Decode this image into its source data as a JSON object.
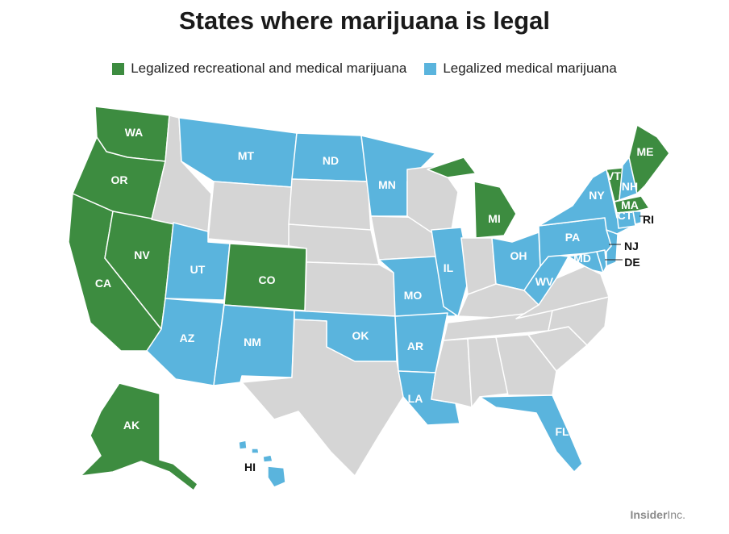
{
  "title": "States where marijuana is legal",
  "legend": [
    {
      "key": "rec",
      "label": "Legalized recreational and medical marijuana",
      "color": "#3d8c40"
    },
    {
      "key": "med",
      "label": "Legalized medical marijuana",
      "color": "#5ab4dd"
    }
  ],
  "colors": {
    "rec": "#3d8c40",
    "med": "#5ab4dd",
    "none": "#d5d5d5"
  },
  "states": {
    "WA": "rec",
    "OR": "rec",
    "CA": "rec",
    "NV": "rec",
    "CO": "rec",
    "AK": "rec",
    "MI": "rec",
    "VT": "rec",
    "MA": "rec",
    "ME": "rec",
    "MT": "med",
    "ND": "med",
    "MN": "med",
    "UT": "med",
    "AZ": "med",
    "NM": "med",
    "OK": "med",
    "AR": "med",
    "LA": "med",
    "MO": "med",
    "IL": "med",
    "OH": "med",
    "WV": "med",
    "PA": "med",
    "NY": "med",
    "NH": "med",
    "CT": "med",
    "RI": "med",
    "NJ": "med",
    "DE": "med",
    "MD": "med",
    "FL": "med",
    "HI": "med",
    "ID": "none",
    "WY": "none",
    "SD": "none",
    "NE": "none",
    "KS": "none",
    "TX": "none",
    "IA": "none",
    "WI": "none",
    "IN": "none",
    "KY": "none",
    "TN": "none",
    "MS": "none",
    "AL": "none",
    "GA": "none",
    "SC": "none",
    "NC": "none",
    "VA": "none"
  },
  "labels": [
    "WA",
    "OR",
    "CA",
    "NV",
    "MT",
    "ND",
    "MN",
    "UT",
    "CO",
    "AZ",
    "NM",
    "OK",
    "AR",
    "MO",
    "IL",
    "LA",
    "MI",
    "OH",
    "WV",
    "PA",
    "NY",
    "VT",
    "NH",
    "ME",
    "MA",
    "CT",
    "MD",
    "FL",
    "AK",
    "HI",
    "RI",
    "NJ",
    "DE"
  ],
  "credit": {
    "brand": "Insider",
    "suffix": "Inc."
  }
}
